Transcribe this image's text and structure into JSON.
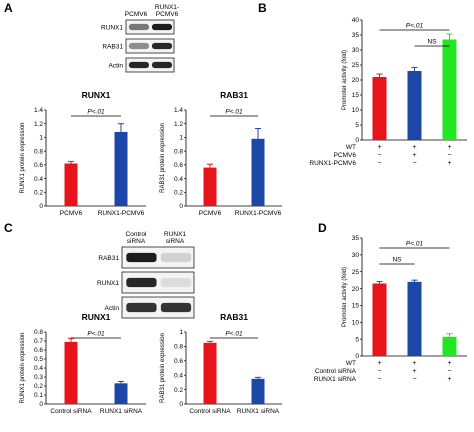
{
  "colors": {
    "red": "#e8141c",
    "blue": "#1c47a6",
    "green": "#22e622",
    "axis": "#000000"
  },
  "panels": {
    "A": {
      "letter": "A",
      "blot": {
        "lane_labels": [
          "PCMV6",
          "RUNX1-\nPCMV6"
        ],
        "rows": [
          "RUNX1",
          "RAB31",
          "Actin"
        ]
      }
    },
    "B": {
      "letter": "B"
    },
    "C": {
      "letter": "C",
      "blot": {
        "lane_labels": [
          "Control\nsiRNA",
          "RUNX1\nsiRNA"
        ],
        "rows": [
          "RAB31",
          "RUNX1",
          "Actin"
        ]
      }
    },
    "D": {
      "letter": "D"
    }
  },
  "chart_data": [
    {
      "id": "A-runx1",
      "type": "bar",
      "title": "RUNX1",
      "ylabel": "RUNX1 protein expression",
      "categories": [
        "PCMV6",
        "RUNX1-PCMV6"
      ],
      "values": [
        0.62,
        1.08
      ],
      "errors": [
        0.03,
        0.12
      ],
      "colors": [
        "#e8141c",
        "#1c47a6"
      ],
      "ylim": [
        0,
        1.4
      ],
      "yticks": [
        "0",
        "0.2",
        "0.4",
        "0.6",
        "0.8",
        "1",
        "1.2",
        "1.4"
      ],
      "significance": "P<.01"
    },
    {
      "id": "A-rab31",
      "type": "bar",
      "title": "RAB31",
      "ylabel": "RAB31 protein expression",
      "categories": [
        "PCMV6",
        "RUNX1-PCMV6"
      ],
      "values": [
        0.56,
        0.98
      ],
      "errors": [
        0.05,
        0.15
      ],
      "colors": [
        "#e8141c",
        "#1c47a6"
      ],
      "ylim": [
        0,
        1.4
      ],
      "yticks": [
        "0",
        "0.2",
        "0.4",
        "0.6",
        "0.8",
        "1",
        "1.2",
        "1.4"
      ],
      "significance": "P<.01"
    },
    {
      "id": "B",
      "type": "bar",
      "title": "",
      "ylabel": "Promoter activity (fold)",
      "values": [
        21,
        23,
        33.5
      ],
      "errors": [
        1.0,
        1.2,
        1.8
      ],
      "colors": [
        "#e8141c",
        "#1c47a6",
        "#22e622"
      ],
      "ylim": [
        0,
        40
      ],
      "yticks": [
        "0",
        "5",
        "10",
        "15",
        "20",
        "25",
        "30",
        "35",
        "40"
      ],
      "conditions": [
        {
          "label": "WT",
          "marks": [
            "+",
            "+",
            "+"
          ]
        },
        {
          "label": "PCMV6",
          "marks": [
            "−",
            "+",
            "−"
          ]
        },
        {
          "label": "RUNX1-PCMV6",
          "marks": [
            "−",
            "−",
            "+"
          ]
        }
      ],
      "brackets": [
        {
          "from": 1,
          "to": 2,
          "label": "NS"
        },
        {
          "from": 0,
          "to": 2,
          "label": "P<.01"
        }
      ]
    },
    {
      "id": "C-runx1",
      "type": "bar",
      "title": "RUNX1",
      "ylabel": "RUNX1 protein expression",
      "categories": [
        "Control siRNA",
        "RUNX1 siRNA"
      ],
      "values": [
        0.69,
        0.23
      ],
      "errors": [
        0.04,
        0.02
      ],
      "colors": [
        "#e8141c",
        "#1c47a6"
      ],
      "ylim": [
        0,
        0.8
      ],
      "yticks": [
        "0",
        "0.1",
        "0.2",
        "0.3",
        "0.4",
        "0.5",
        "0.6",
        "0.7",
        "0.8"
      ],
      "significance": "P<.01"
    },
    {
      "id": "C-rab31",
      "type": "bar",
      "title": "RAB31",
      "ylabel": "RAB31 protein expression",
      "categories": [
        "Control siRNA",
        "RUNX1 siRNA"
      ],
      "values": [
        0.85,
        0.35
      ],
      "errors": [
        0.02,
        0.02
      ],
      "colors": [
        "#e8141c",
        "#1c47a6"
      ],
      "ylim": [
        0,
        1
      ],
      "yticks": [
        "0",
        "0.2",
        "0.4",
        "0.6",
        "0.8",
        "1"
      ],
      "significance": "P<.01"
    },
    {
      "id": "D",
      "type": "bar",
      "title": "",
      "ylabel": "Promoter activity (fold)",
      "values": [
        21.5,
        22,
        5.7
      ],
      "errors": [
        0.6,
        0.5,
        0.9
      ],
      "colors": [
        "#e8141c",
        "#1c47a6",
        "#22e622"
      ],
      "ylim": [
        0,
        35
      ],
      "yticks": [
        "0",
        "5",
        "10",
        "15",
        "20",
        "25",
        "30",
        "35"
      ],
      "conditions": [
        {
          "label": "WT",
          "marks": [
            "+",
            "+",
            "+"
          ]
        },
        {
          "label": "Control siRNA",
          "marks": [
            "−",
            "+",
            "−"
          ]
        },
        {
          "label": "RUNX1 siRNA",
          "marks": [
            "−",
            "−",
            "+"
          ]
        }
      ],
      "brackets": [
        {
          "from": 0,
          "to": 1,
          "label": "NS"
        },
        {
          "from": 0,
          "to": 2,
          "label": "P<.01"
        }
      ]
    }
  ]
}
